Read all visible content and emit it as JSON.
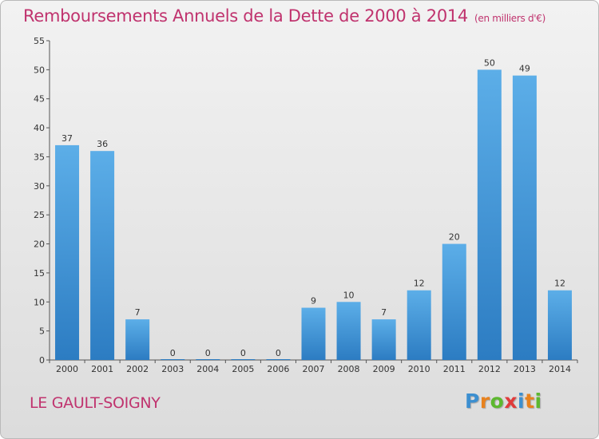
{
  "chart_data": {
    "type": "bar",
    "title": "Remboursements Annuels de la Dette de 2000 à 2014",
    "unit_note": "(en milliers d'€)",
    "categories": [
      "2000",
      "2001",
      "2002",
      "2003",
      "2004",
      "2005",
      "2006",
      "2007",
      "2008",
      "2009",
      "2010",
      "2011",
      "2012",
      "2013",
      "2014"
    ],
    "values": [
      37,
      36,
      7,
      0,
      0,
      0,
      0,
      9,
      10,
      7,
      12,
      20,
      50,
      49,
      12
    ],
    "ylim": [
      0,
      55
    ],
    "yticks": [
      0,
      5,
      10,
      15,
      20,
      25,
      30,
      35,
      40,
      45,
      50,
      55
    ],
    "grid": false,
    "bar_color": "#3a8fd6"
  },
  "place_name": "LE GAULT-SOIGNY",
  "brand": {
    "letters": [
      "P",
      "r",
      "o",
      "x",
      "i",
      "t",
      "i"
    ],
    "colors": [
      "#3c8fd0",
      "#e8821e",
      "#5db82f",
      "#e03b3b",
      "#3c8fd0",
      "#e8821e",
      "#5db82f"
    ]
  }
}
